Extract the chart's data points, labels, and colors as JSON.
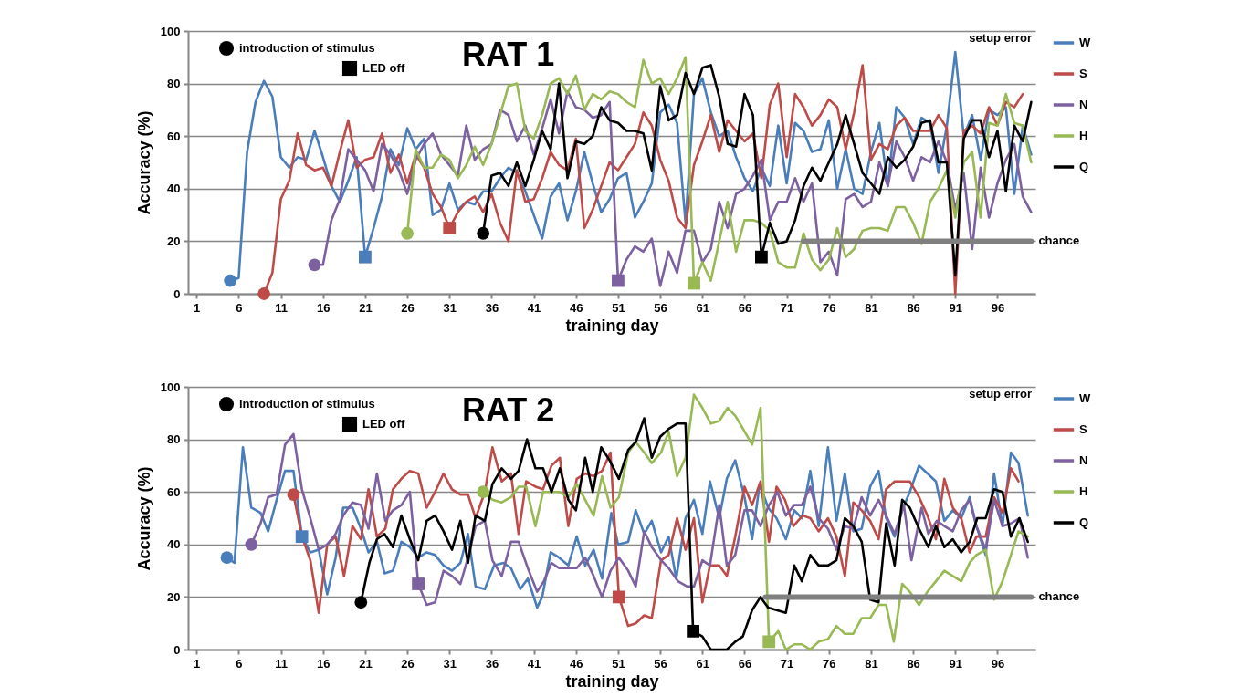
{
  "chart_data": [
    {
      "type": "line",
      "title": "RAT 1",
      "xlabel": "training day",
      "ylabel": "Accuracy (%)",
      "xlim": [
        0,
        100.5
      ],
      "xticks": [
        1,
        6,
        11,
        16,
        21,
        26,
        31,
        36,
        41,
        46,
        51,
        56,
        61,
        66,
        71,
        76,
        81,
        86,
        91,
        96
      ],
      "ylim": [
        0,
        100
      ],
      "yticks": [
        0,
        20,
        40,
        60,
        80,
        100
      ],
      "grid": "y",
      "legend": "right",
      "annotations": [
        "setup error"
      ],
      "series": [
        {
          "name": "W",
          "color": "#4a7ebb",
          "x": [
            5,
            6,
            7,
            8,
            9,
            10,
            11,
            12,
            13,
            14,
            15,
            16,
            17,
            18,
            19,
            20,
            21,
            22,
            23,
            24,
            25,
            26,
            27,
            28,
            29,
            30,
            31,
            32,
            33,
            34,
            35,
            36,
            37,
            38,
            39,
            40,
            41,
            42,
            43,
            44,
            45,
            46,
            47,
            48,
            49,
            50,
            51,
            52,
            53,
            54,
            55,
            56,
            57,
            58,
            59,
            60,
            61,
            62,
            63,
            64,
            65,
            66,
            67,
            68,
            69,
            70,
            71,
            72,
            73,
            74,
            75,
            76,
            77,
            78,
            79,
            80,
            81,
            82,
            83,
            84,
            85,
            86,
            87,
            88,
            89,
            90,
            91,
            92,
            93,
            94,
            95,
            96,
            97,
            98,
            99,
            100
          ],
          "values": [
            5,
            6,
            54,
            73,
            81,
            75,
            52,
            48,
            52,
            51,
            62,
            52,
            41,
            35,
            43,
            52,
            14,
            25,
            37,
            55,
            49,
            63,
            55,
            59,
            30,
            32,
            42,
            32,
            35,
            34,
            39,
            39,
            44,
            48,
            46,
            39,
            30,
            21,
            37,
            42,
            28,
            39,
            54,
            42,
            31,
            36,
            44,
            46,
            29,
            35,
            42,
            69,
            72,
            65,
            27,
            76,
            82,
            69,
            60,
            62,
            52,
            44,
            39,
            48,
            41,
            64,
            42,
            65,
            62,
            54,
            55,
            66,
            40,
            55,
            40,
            38,
            54,
            65,
            41,
            71,
            67,
            57,
            67,
            65,
            46,
            64,
            92,
            60,
            68,
            51,
            70,
            68,
            71,
            38,
            64,
            53
          ]
        },
        {
          "name": "S",
          "color": "#be4b48",
          "x": [
            9,
            10,
            11,
            12,
            13,
            14,
            15,
            16,
            17,
            18,
            19,
            20,
            21,
            22,
            23,
            24,
            25,
            26,
            27,
            28,
            29,
            30,
            31,
            32,
            33,
            34,
            35,
            36,
            37,
            38,
            39,
            40,
            41,
            42,
            43,
            44,
            45,
            46,
            47,
            48,
            49,
            50,
            51,
            52,
            53,
            54,
            55,
            56,
            57,
            58,
            59,
            60,
            61,
            62,
            63,
            64,
            65,
            66,
            67,
            68,
            69,
            70,
            71,
            72,
            73,
            74,
            75,
            76,
            77,
            78,
            79,
            80,
            81,
            82,
            83,
            84,
            85,
            86,
            87,
            88,
            89,
            90,
            91,
            92,
            93,
            94,
            95,
            96,
            97,
            98,
            99
          ],
          "values": [
            0,
            8,
            36,
            43,
            61,
            49,
            47,
            48,
            41,
            54,
            66,
            48,
            51,
            52,
            61,
            46,
            53,
            42,
            53,
            48,
            38,
            33,
            25,
            31,
            35,
            37,
            31,
            38,
            27,
            20,
            47,
            35,
            36,
            44,
            54,
            49,
            47,
            59,
            25,
            32,
            41,
            50,
            47,
            52,
            57,
            69,
            64,
            51,
            43,
            29,
            25,
            49,
            58,
            68,
            54,
            66,
            62,
            58,
            61,
            44,
            72,
            80,
            52,
            76,
            71,
            64,
            68,
            74,
            71,
            55,
            69,
            87,
            51,
            57,
            55,
            64,
            67,
            62,
            62,
            62,
            68,
            63,
            0,
            62,
            64,
            61,
            71,
            64,
            73,
            71,
            76
          ]
        },
        {
          "name": "N",
          "color": "#7d60a0",
          "x": [
            15,
            16,
            17,
            18,
            19,
            20,
            21,
            22,
            23,
            24,
            25,
            26,
            27,
            28,
            29,
            30,
            31,
            32,
            33,
            34,
            35,
            36,
            37,
            38,
            39,
            40,
            41,
            42,
            43,
            44,
            45,
            46,
            47,
            48,
            49,
            50,
            51,
            52,
            53,
            54,
            55,
            56,
            57,
            58,
            59,
            60,
            61,
            62,
            63,
            64,
            65,
            66,
            67,
            68,
            69,
            70,
            71,
            72,
            73,
            74,
            75,
            76,
            77,
            78,
            79,
            80,
            81,
            82,
            83,
            84,
            85,
            86,
            87,
            88,
            89,
            90,
            91,
            92,
            93,
            94,
            95,
            96,
            97,
            98,
            99,
            100
          ],
          "values": [
            11,
            11,
            28,
            36,
            55,
            51,
            47,
            39,
            57,
            53,
            47,
            38,
            51,
            57,
            61,
            53,
            49,
            45,
            64,
            51,
            55,
            57,
            70,
            68,
            58,
            64,
            53,
            63,
            74,
            61,
            77,
            71,
            70,
            67,
            68,
            73,
            5,
            13,
            18,
            16,
            21,
            3,
            16,
            8,
            24,
            24,
            12,
            17,
            35,
            25,
            38,
            40,
            45,
            51,
            28,
            35,
            35,
            44,
            35,
            42,
            12,
            16,
            7,
            36,
            38,
            33,
            35,
            50,
            41,
            58,
            52,
            43,
            52,
            50,
            58,
            50,
            32,
            46,
            17,
            48,
            29,
            42,
            51,
            57,
            37,
            31
          ]
        },
        {
          "name": "H",
          "color": "#98b954",
          "x": [
            26,
            27,
            28,
            29,
            30,
            31,
            32,
            33,
            34,
            35,
            36,
            37,
            38,
            39,
            40,
            41,
            42,
            43,
            44,
            45,
            46,
            47,
            48,
            49,
            50,
            51,
            52,
            53,
            54,
            55,
            56,
            57,
            58,
            59,
            60,
            61,
            62,
            63,
            64,
            65,
            66,
            67,
            68,
            69,
            70,
            71,
            72,
            73,
            74,
            75,
            76,
            77,
            78,
            79,
            80,
            81,
            82,
            83,
            84,
            85,
            86,
            87,
            88,
            89,
            90,
            91,
            92,
            93,
            94,
            95,
            96,
            97,
            98,
            99,
            100
          ],
          "values": [
            23,
            55,
            48,
            48,
            53,
            51,
            44,
            49,
            56,
            49,
            57,
            68,
            79,
            80,
            62,
            59,
            68,
            80,
            82,
            76,
            83,
            70,
            76,
            74,
            77,
            76,
            73,
            71,
            89,
            80,
            82,
            76,
            82,
            90,
            4,
            12,
            5,
            20,
            35,
            16,
            28,
            28,
            27,
            24,
            12,
            10,
            10,
            23,
            13,
            9,
            13,
            25,
            14,
            17,
            24,
            25,
            25,
            24,
            33,
            33,
            27,
            19,
            35,
            40,
            47,
            29,
            50,
            54,
            29,
            65,
            64,
            76,
            65,
            64,
            50
          ]
        },
        {
          "name": "Q",
          "color": "#000000",
          "x": [
            35,
            36,
            37,
            38,
            39,
            40,
            41,
            42,
            43,
            44,
            45,
            46,
            47,
            48,
            49,
            50,
            51,
            52,
            53,
            54,
            55,
            56,
            57,
            58,
            59,
            60,
            61,
            62,
            63,
            64,
            65,
            66,
            67,
            68,
            69,
            70,
            71,
            72,
            73,
            74,
            75,
            76,
            77,
            78,
            79,
            80,
            81,
            82,
            83,
            84,
            85,
            86,
            87,
            88,
            89,
            90,
            91,
            92,
            93,
            94,
            95,
            96,
            97,
            98,
            99,
            100
          ],
          "values": [
            23,
            45,
            46,
            41,
            50,
            41,
            51,
            62,
            55,
            80,
            44,
            58,
            57,
            60,
            71,
            66,
            65,
            62,
            62,
            61,
            47,
            79,
            66,
            68,
            84,
            76,
            86,
            87,
            75,
            57,
            56,
            76,
            68,
            14,
            27,
            19,
            20,
            28,
            41,
            48,
            43,
            50,
            57,
            68,
            57,
            46,
            42,
            38,
            52,
            48,
            51,
            56,
            65,
            66,
            50,
            50,
            7,
            59,
            66,
            66,
            52,
            62,
            39,
            64,
            58,
            73
          ]
        },
        {
          "name": "chance",
          "type": "line",
          "color": "#808080",
          "x": [
            73,
            100
          ],
          "values": [
            20,
            20
          ]
        },
        {
          "name": "introduction of stimulus",
          "type": "scatter",
          "marker": "circle",
          "color": "#000000",
          "colors": [
            "#4a7ebb",
            "#be4b48",
            "#7d60a0",
            "#98b954",
            "#000000"
          ],
          "x": [
            5,
            9,
            15,
            26,
            35
          ],
          "values": [
            5,
            0,
            11,
            23,
            23
          ]
        },
        {
          "name": "LED off",
          "type": "scatter",
          "marker": "square",
          "color": "#000000",
          "colors": [
            "#4a7ebb",
            "#be4b48",
            "#7d60a0",
            "#98b954",
            "#000000"
          ],
          "x": [
            21,
            31,
            51,
            60,
            68
          ],
          "values": [
            14,
            25,
            5,
            4,
            14
          ]
        }
      ]
    },
    {
      "type": "line",
      "title": "RAT 2",
      "xlabel": "training day",
      "ylabel": "Accuracy (%)",
      "xlim": [
        0,
        100.5
      ],
      "xticks": [
        1,
        6,
        11,
        16,
        21,
        26,
        31,
        36,
        41,
        46,
        51,
        56,
        61,
        66,
        71,
        76,
        81,
        86,
        91,
        96
      ],
      "ylim": [
        0,
        100
      ],
      "yticks": [
        0,
        20,
        40,
        60,
        80,
        100
      ],
      "grid": "y",
      "legend": "right",
      "annotations": [
        "setup error"
      ],
      "series": [
        {
          "name": "W",
          "color": "#4a7ebb",
          "x": [
            4.6,
            5.5,
            6.5,
            7.5,
            8.6,
            9.5,
            10.5,
            11.5,
            12.5,
            13.5,
            14.5,
            15.5,
            16.5,
            17.5,
            18.4,
            19.5,
            20.5,
            21.4,
            22.4,
            23.3,
            24.3,
            25.3,
            26.3,
            27.3,
            28.3,
            29.3,
            30.3,
            31.3,
            32.3,
            33.2,
            34.1,
            35.2,
            36.3,
            37.4,
            38.3,
            39.4,
            40.3,
            41.4,
            42,
            43,
            44,
            45.1,
            46.1,
            47.1,
            48.1,
            49.1,
            50.2,
            51,
            52.2,
            53.1,
            54.1,
            55,
            56.1,
            57,
            57.9,
            59,
            60,
            61,
            61.9,
            63,
            63.9,
            64.9,
            66,
            66.9,
            67.8,
            68.8,
            69.8,
            70.9,
            71.9,
            72.8,
            73.8,
            74.8,
            75.9,
            76.9,
            77.9,
            78.9,
            79.9,
            80.9,
            81.9,
            82.8,
            83.8,
            84.7,
            85.6,
            86.7,
            87.7,
            88.7,
            89.7,
            90.7,
            91.7,
            92.7,
            93.5,
            94.6,
            95.6,
            96.6,
            97.6,
            98.5,
            99.6
          ],
          "values": [
            35,
            33,
            77,
            54,
            52,
            45,
            57,
            68,
            68,
            43,
            37,
            38,
            21,
            35,
            54,
            54,
            46,
            37,
            41,
            29,
            30,
            41,
            39,
            35,
            37,
            36,
            32,
            30,
            33,
            44,
            24,
            23,
            32,
            33,
            31,
            23,
            27,
            16,
            20,
            37,
            35,
            32,
            43,
            32,
            38,
            27,
            52,
            40,
            41,
            53,
            44,
            49,
            37,
            43,
            27,
            50,
            57,
            44,
            64,
            50,
            65,
            72,
            58,
            42,
            63,
            54,
            50,
            42,
            53,
            50,
            68,
            47,
            77,
            49,
            67,
            45,
            46,
            62,
            68,
            50,
            43,
            53,
            60,
            70,
            67,
            64,
            49,
            53,
            50,
            58,
            47,
            36,
            67,
            47,
            75,
            71,
            51
          ]
        },
        {
          "name": "S",
          "color": "#be4b48",
          "x": [
            12.5,
            13.5,
            14.5,
            15.5,
            16.5,
            17.5,
            18.5,
            19.5,
            20.5,
            21.4,
            22.4,
            23.4,
            24.3,
            25.3,
            26.3,
            27.3,
            28.3,
            29.3,
            30.3,
            31.3,
            32.3,
            33.2,
            34.1,
            35.2,
            36.1,
            37.2,
            38.3,
            39.2,
            40.1,
            41.2,
            42.1,
            43.1,
            44.1,
            45.1,
            46.1,
            47.1,
            48.1,
            49.1,
            50.1,
            51.1,
            52.2,
            53.1,
            54.1,
            55,
            56.1,
            57,
            58,
            59,
            60,
            61,
            61.9,
            63,
            63.9,
            64.9,
            66,
            66.9,
            67.9,
            68.9,
            69.8,
            70.8,
            71.8,
            72.9,
            73.8,
            74.8,
            75.9,
            76.9,
            77.9,
            78.9,
            79.9,
            80.9,
            81.9,
            82.8,
            83.8,
            84.7,
            85.6,
            86.7,
            87.7,
            88.7,
            89.7,
            90.7,
            91.7,
            92.7,
            93.5,
            94.6,
            95.6,
            96.6,
            97.6,
            98.5
          ],
          "values": [
            59,
            43,
            34,
            14,
            40,
            43,
            28,
            47,
            42,
            61,
            43,
            46,
            61,
            65,
            68,
            67,
            54,
            60,
            67,
            61,
            59,
            59,
            50,
            60,
            77,
            64,
            67,
            44,
            64,
            62,
            61,
            70,
            73,
            47,
            65,
            67,
            66,
            68,
            75,
            20,
            9,
            10,
            13,
            12,
            34,
            36,
            50,
            38,
            50,
            18,
            32,
            32,
            28,
            43,
            62,
            55,
            64,
            41,
            62,
            57,
            47,
            51,
            50,
            45,
            50,
            43,
            28,
            56,
            53,
            49,
            42,
            61,
            64,
            64,
            64,
            58,
            51,
            42,
            65,
            54,
            50,
            37,
            43,
            43,
            58,
            52,
            69,
            64
          ]
        },
        {
          "name": "N",
          "color": "#7d60a0",
          "x": [
            7.5,
            8.6,
            9.5,
            10.5,
            11.5,
            12.5,
            13.5,
            14.5,
            15.5,
            16.5,
            17.5,
            18.4,
            19.5,
            20.5,
            21.4,
            22.4,
            23.4,
            24.3,
            25.3,
            26.3,
            27.3,
            28.3,
            29.3,
            30.3,
            31.3,
            32.3,
            33.2,
            34.1,
            35.2,
            36.1,
            37.2,
            38.3,
            39.2,
            40.3,
            41.4,
            42.2,
            43.1,
            44,
            45.1,
            46.1,
            47.1,
            48.1,
            49.1,
            50.1,
            51.1,
            52.2,
            53.1,
            54.1,
            55,
            56.1,
            57,
            58.1,
            59.2,
            60,
            61,
            61.9,
            63,
            63.9,
            64.9,
            66,
            66.9,
            67.9,
            68.9,
            69.9,
            70.9,
            71.9,
            72.8,
            73.8,
            74.8,
            75.9,
            76.9,
            77.9,
            78.9,
            79.9,
            80.9,
            81.9,
            82.8,
            83.8,
            84.9,
            85.8,
            87,
            87.8,
            88.8,
            89.7,
            90.7,
            91.7,
            92.7,
            93.5,
            94.6,
            95.6,
            96.6,
            97.6,
            98.6,
            99.6
          ],
          "values": [
            40,
            48,
            58,
            59,
            78,
            82,
            61,
            50,
            38,
            40,
            44,
            51,
            56,
            55,
            46,
            67,
            49,
            53,
            55,
            60,
            25,
            17,
            18,
            30,
            28,
            25,
            35,
            47,
            49,
            34,
            28,
            41,
            41,
            31,
            22,
            26,
            33,
            31,
            31,
            31,
            35,
            28,
            20,
            30,
            35,
            30,
            24,
            45,
            39,
            34,
            31,
            26,
            24,
            24,
            34,
            32,
            55,
            32,
            36,
            53,
            53,
            47,
            55,
            60,
            51,
            55,
            55,
            62,
            50,
            46,
            38,
            47,
            46,
            58,
            51,
            57,
            51,
            44,
            55,
            34,
            54,
            44,
            49,
            47,
            45,
            53,
            57,
            47,
            38,
            57,
            47,
            48,
            50,
            35
          ]
        },
        {
          "name": "H",
          "color": "#98b954",
          "x": [
            35,
            36.1,
            37.2,
            38.3,
            39.2,
            40.1,
            41.2,
            42.1,
            43.1,
            44,
            45.1,
            46.1,
            47.1,
            48.1,
            49.1,
            50.1,
            51.1,
            52.2,
            53.1,
            54.1,
            55,
            56.1,
            57,
            58,
            59,
            60,
            61,
            62,
            63,
            64,
            64.9,
            66,
            66.9,
            67.9,
            68.9,
            70,
            70.9,
            71.9,
            72.8,
            73.8,
            74.8,
            75.9,
            76.9,
            77.9,
            78.9,
            79.9,
            80.9,
            81.9,
            82.8,
            83.7,
            84.7,
            85.6,
            86.7,
            87.7,
            88.7,
            89.7,
            90.7,
            91.7,
            92.7,
            93.5,
            94.6,
            95.6,
            96.6,
            97.6,
            98.5,
            99.6
          ],
          "values": [
            60,
            57,
            56,
            58,
            62,
            62,
            47,
            60,
            60,
            60,
            58,
            63,
            57,
            51,
            66,
            54,
            58,
            75,
            79,
            75,
            71,
            75,
            83,
            66,
            73,
            97,
            92,
            86,
            87,
            92,
            89,
            83,
            78,
            92,
            3,
            7,
            0,
            2,
            2,
            0,
            3,
            4,
            9,
            6,
            6,
            12,
            12,
            17,
            17,
            3,
            25,
            22,
            17,
            22,
            26,
            30,
            28,
            26,
            33,
            36,
            38,
            19,
            26,
            36,
            45,
            43
          ]
        },
        {
          "name": "Q",
          "color": "#000000",
          "x": [
            20.5,
            21.5,
            22.4,
            23.3,
            24.3,
            25.3,
            26.3,
            27.3,
            28.3,
            29.3,
            30.3,
            31.3,
            32.3,
            33.2,
            34.1,
            35.2,
            36.1,
            37.2,
            38.3,
            39.2,
            40.2,
            41.2,
            42.1,
            43.1,
            44.1,
            45.1,
            46,
            47.1,
            48,
            49,
            50,
            51.1,
            52.2,
            53.1,
            54.1,
            55,
            56,
            57,
            58,
            59,
            59.9,
            61,
            62,
            63,
            63.9,
            64.9,
            65.8,
            66.9,
            67.9,
            68.8,
            69.8,
            70.9,
            71.9,
            72.8,
            73.8,
            74.8,
            75.9,
            76.9,
            77.9,
            78.9,
            79.9,
            80.9,
            81.9,
            82.8,
            83.8,
            84.7,
            85.6,
            86.7,
            87.8,
            88.7,
            89.7,
            90.7,
            91.7,
            92.7,
            93.6,
            94.6,
            95.6,
            96.6,
            97.6,
            98.6,
            99.6
          ],
          "values": [
            18,
            33,
            42,
            44,
            39,
            51,
            42,
            34,
            49,
            51,
            45,
            38,
            49,
            33,
            51,
            49,
            63,
            69,
            65,
            68,
            80,
            69,
            69,
            60,
            69,
            57,
            53,
            73,
            60,
            77,
            72,
            65,
            76,
            79,
            88,
            73,
            81,
            84,
            86,
            86,
            7,
            5,
            0,
            0,
            0,
            3,
            5,
            15,
            20,
            16,
            15,
            14,
            32,
            26,
            36,
            32,
            32,
            34,
            50,
            47,
            41,
            19,
            18,
            48,
            32,
            57,
            54,
            46,
            39,
            47,
            39,
            42,
            37,
            41,
            50,
            50,
            61,
            60,
            43,
            50,
            41
          ]
        },
        {
          "name": "chance",
          "type": "line",
          "color": "#808080",
          "x": [
            68.5,
            100
          ],
          "values": [
            20,
            20
          ]
        },
        {
          "name": "introduction of stimulus",
          "type": "scatter",
          "marker": "circle",
          "color": "#000000",
          "colors": [
            "#4a7ebb",
            "#7d60a0",
            "#be4b48",
            "#000000",
            "#98b954"
          ],
          "x": [
            4.6,
            7.5,
            12.5,
            20.5,
            35
          ],
          "values": [
            35,
            40,
            59,
            18,
            60
          ]
        },
        {
          "name": "LED off",
          "type": "scatter",
          "marker": "square",
          "color": "#000000",
          "colors": [
            "#4a7ebb",
            "#7d60a0",
            "#be4b48",
            "#000000",
            "#98b954"
          ],
          "x": [
            13.5,
            27.3,
            51.1,
            59.9,
            68.9
          ],
          "values": [
            43,
            25,
            20,
            7,
            3
          ]
        }
      ]
    }
  ]
}
